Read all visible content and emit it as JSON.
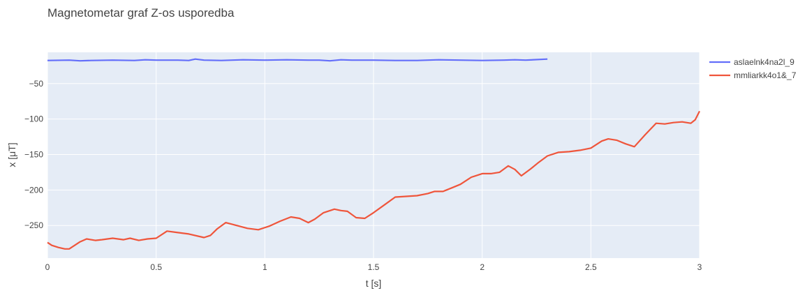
{
  "chart_data": {
    "type": "line",
    "title": "Magnetometar graf Z-os usporedba",
    "xlabel": "t [s]",
    "ylabel": "x [μT]",
    "xlim": [
      0,
      3
    ],
    "ylim": [
      -296,
      -6
    ],
    "x_ticks": [
      0,
      0.5,
      1,
      1.5,
      2,
      2.5,
      3
    ],
    "x_tick_labels": [
      "0",
      "0.5",
      "1",
      "1.5",
      "2",
      "2.5",
      "3"
    ],
    "y_ticks": [
      -50,
      -100,
      -150,
      -200,
      -250
    ],
    "y_tick_labels": [
      "−50",
      "−100",
      "−150",
      "−200",
      "−250"
    ],
    "grid": true,
    "legend_position": "top-right",
    "plot_background": "#e5ecf6",
    "series": [
      {
        "name": "aslaelnk4na2l_9",
        "color": "#636efa",
        "x": [
          0,
          0.1,
          0.15,
          0.2,
          0.3,
          0.4,
          0.45,
          0.5,
          0.6,
          0.65,
          0.68,
          0.72,
          0.8,
          0.9,
          1.0,
          1.1,
          1.2,
          1.25,
          1.3,
          1.35,
          1.4,
          1.5,
          1.6,
          1.7,
          1.8,
          1.9,
          2.0,
          2.1,
          2.15,
          2.2,
          2.3
        ],
        "y": [
          -17.5,
          -17,
          -18,
          -17.5,
          -17,
          -17.5,
          -16.5,
          -17,
          -17,
          -17.5,
          -15.5,
          -17,
          -17.5,
          -16.5,
          -17,
          -16.5,
          -17,
          -17,
          -18,
          -16.5,
          -17,
          -17,
          -17.5,
          -17.5,
          -16.5,
          -17,
          -17.5,
          -17,
          -16.5,
          -17,
          -15.5
        ]
      },
      {
        "name": "mmliarkk4o1&_7",
        "color": "#ef553b",
        "x": [
          0,
          0.02,
          0.05,
          0.08,
          0.1,
          0.12,
          0.15,
          0.18,
          0.22,
          0.25,
          0.3,
          0.35,
          0.38,
          0.42,
          0.46,
          0.5,
          0.55,
          0.6,
          0.65,
          0.72,
          0.75,
          0.78,
          0.82,
          0.87,
          0.92,
          0.97,
          1.02,
          1.07,
          1.12,
          1.16,
          1.2,
          1.23,
          1.27,
          1.32,
          1.35,
          1.38,
          1.42,
          1.46,
          1.5,
          1.55,
          1.6,
          1.65,
          1.7,
          1.75,
          1.78,
          1.82,
          1.86,
          1.9,
          1.95,
          2.0,
          2.04,
          2.08,
          2.12,
          2.15,
          2.18,
          2.22,
          2.26,
          2.3,
          2.35,
          2.4,
          2.45,
          2.5,
          2.55,
          2.58,
          2.62,
          2.66,
          2.7,
          2.75,
          2.8,
          2.84,
          2.88,
          2.92,
          2.96,
          2.98,
          3.0
        ],
        "y": [
          -274,
          -278,
          -281,
          -283,
          -283,
          -279,
          -273,
          -269,
          -271,
          -270,
          -268,
          -270,
          -268,
          -271,
          -269,
          -268,
          -258,
          -260,
          -262,
          -267,
          -264,
          -255,
          -246,
          -250,
          -254,
          -256,
          -251,
          -244,
          -238,
          -240,
          -246,
          -241,
          -232,
          -227,
          -229,
          -230,
          -239,
          -240,
          -232,
          -221,
          -210,
          -209,
          -208,
          -205,
          -202,
          -202,
          -197,
          -192,
          -182,
          -177,
          -177,
          -175,
          -166,
          -171,
          -180,
          -171,
          -161,
          -152,
          -147,
          -146,
          -144,
          -141,
          -131,
          -128,
          -130,
          -135,
          -139,
          -122,
          -106,
          -107,
          -105,
          -104,
          -106,
          -101,
          -89
        ]
      }
    ]
  }
}
